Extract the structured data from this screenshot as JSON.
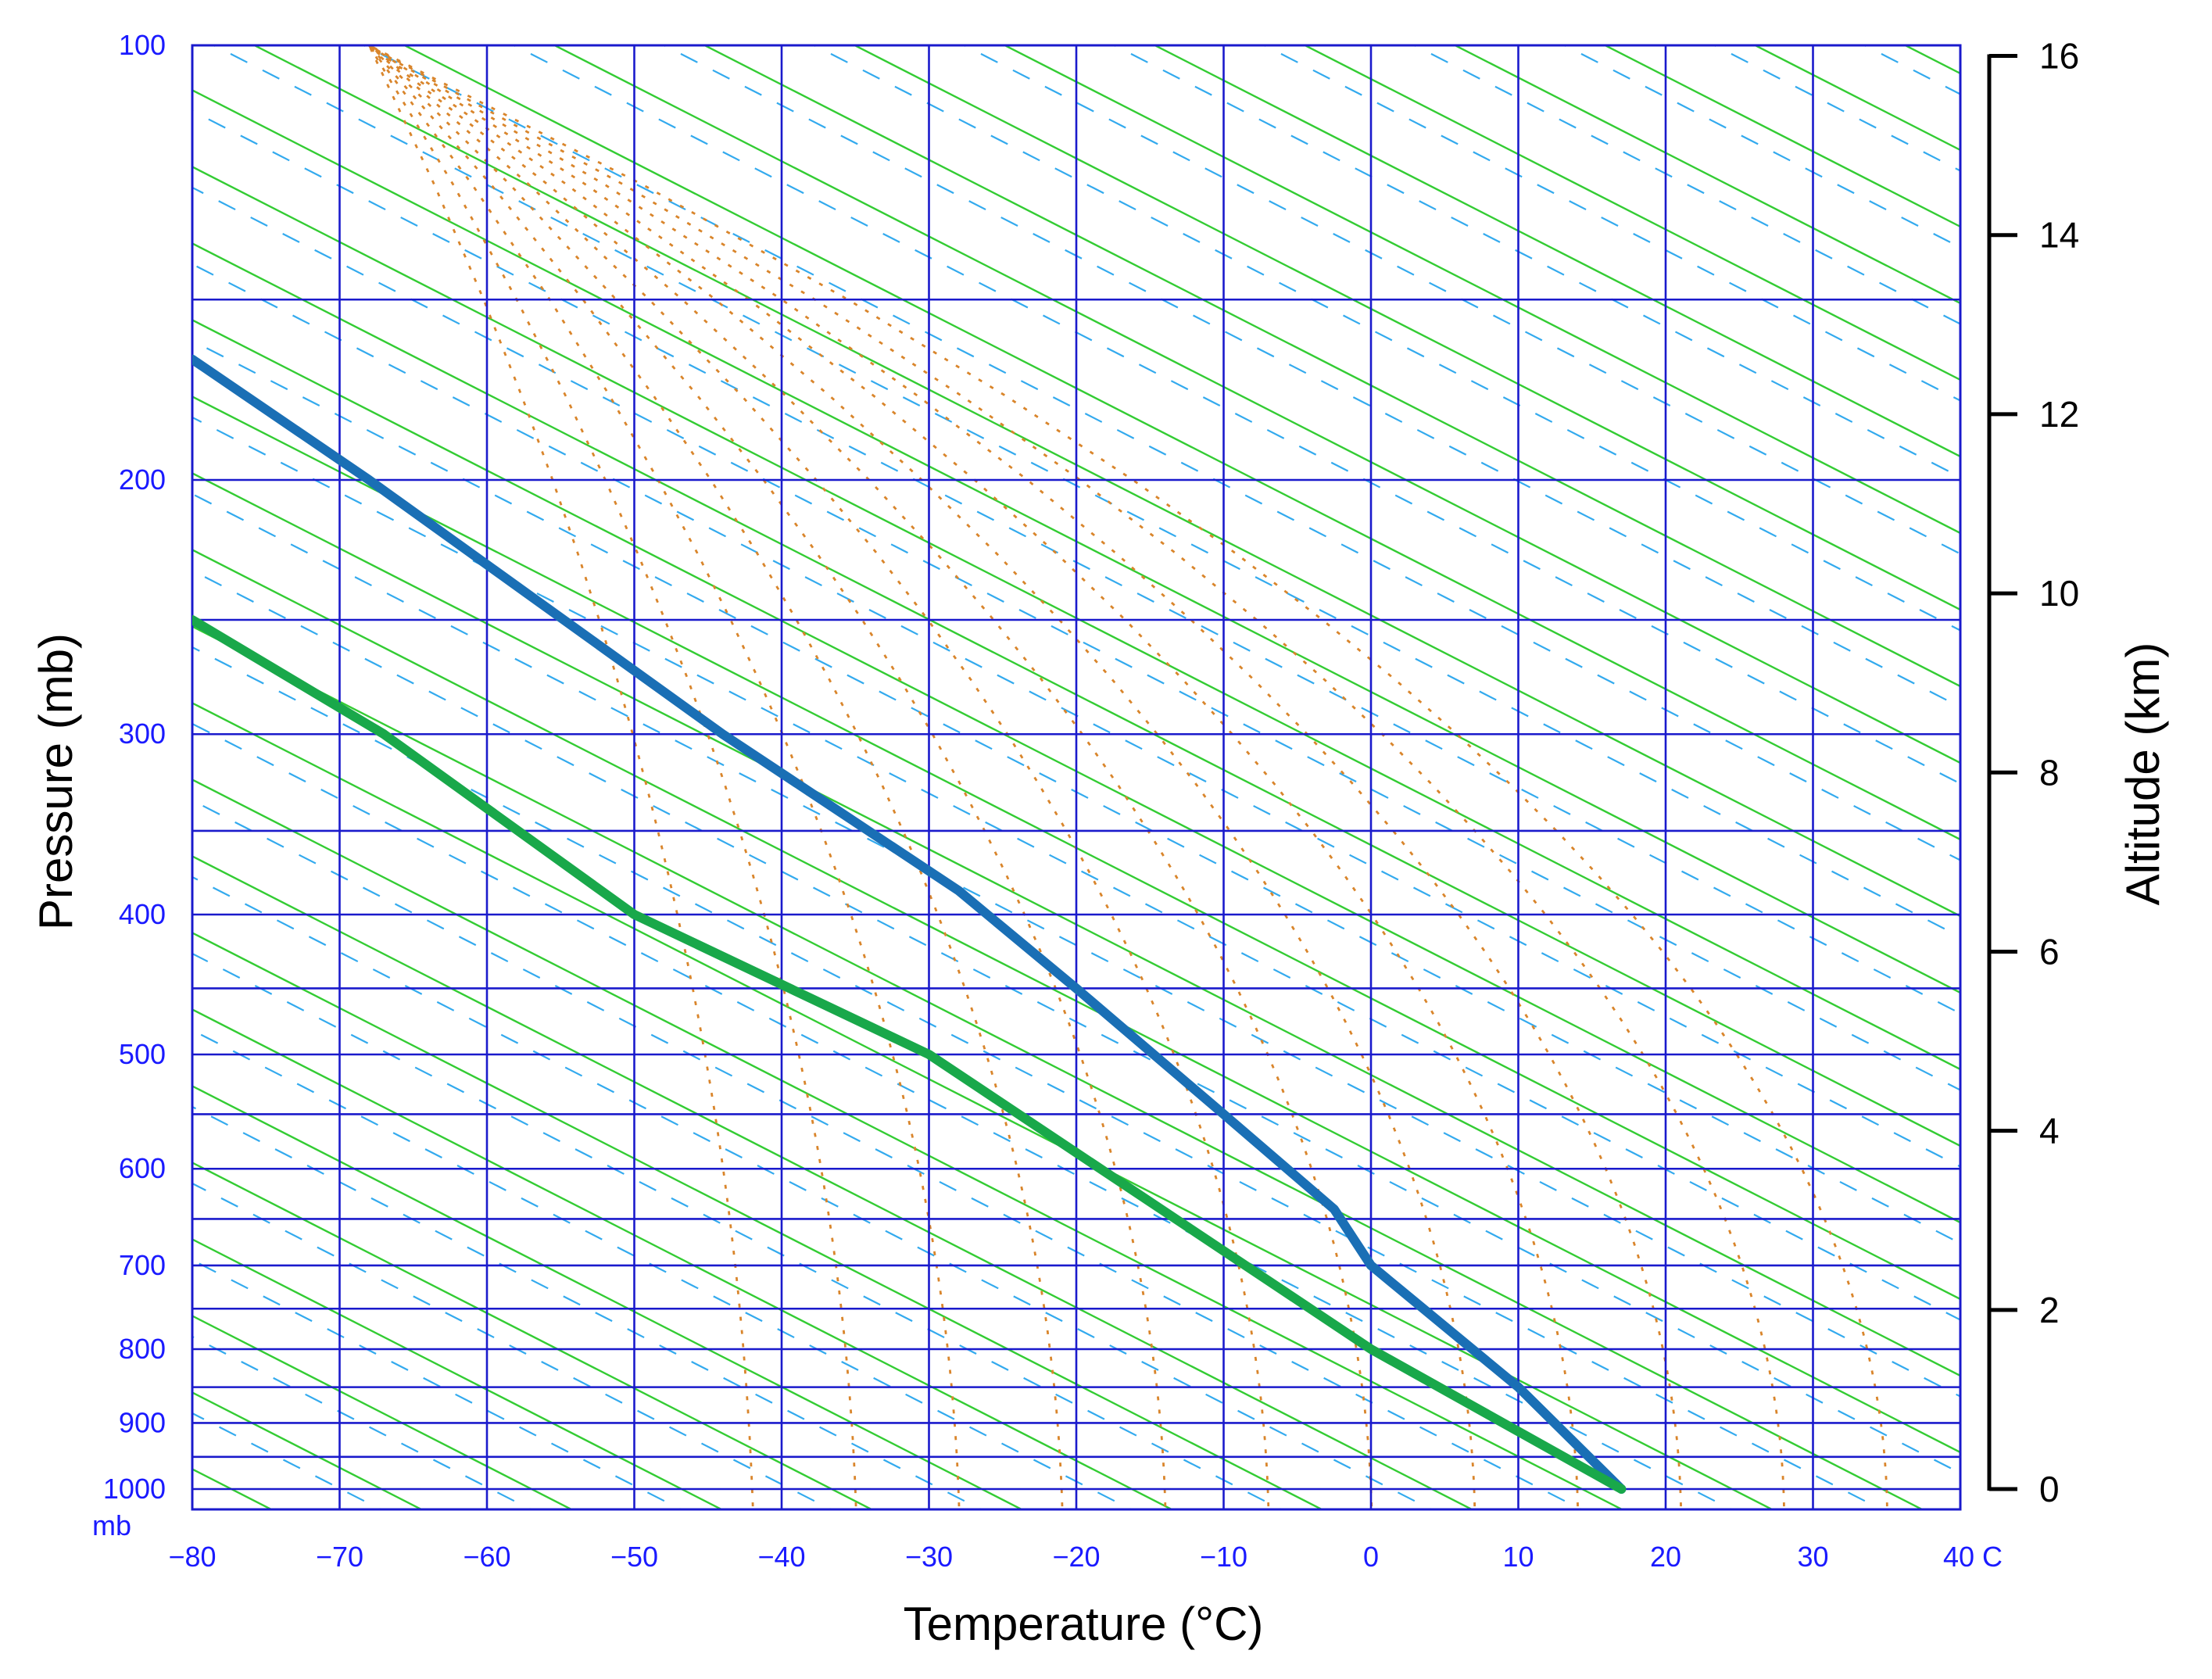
{
  "chart_data": {
    "type": "line",
    "title": "",
    "xlabel": "Temperature (°C)",
    "ylabel": "Pressure (mb)",
    "y2label": "Altitude (km)",
    "x_ticks": [
      "−80",
      "−70",
      "−60",
      "−50",
      "−40",
      "−30",
      "−20",
      "−10",
      "0",
      "10",
      "20",
      "30",
      "40 C"
    ],
    "x_tick_values": [
      -80,
      -70,
      -60,
      -50,
      -40,
      -30,
      -20,
      -10,
      0,
      10,
      20,
      30,
      40
    ],
    "y_ticks": [
      "100",
      "200",
      "300",
      "400",
      "500",
      "600",
      "700",
      "800",
      "900",
      "1000"
    ],
    "y_tick_values": [
      100,
      200,
      300,
      400,
      500,
      600,
      700,
      800,
      900,
      1000
    ],
    "y_unit_label": "mb",
    "y_grid_levels": [
      100,
      150,
      200,
      250,
      300,
      350,
      400,
      450,
      500,
      550,
      600,
      650,
      700,
      750,
      800,
      850,
      900,
      950,
      1000,
      1050
    ],
    "y2_ticks": [
      "0",
      "2",
      "4",
      "6",
      "8",
      "10",
      "12",
      "14",
      "16"
    ],
    "y2_tick_values": [
      0,
      2,
      4,
      6,
      8,
      10,
      12,
      14,
      16
    ],
    "xlim": [
      -80,
      40
    ],
    "ylim": [
      1050,
      100
    ],
    "y_scale": "log",
    "grid": true,
    "colors": {
      "grid": "#1a1acc",
      "dry_adiabat": "#33cc33",
      "moist_adiabat": "#d9852b",
      "mixing_ratio": "#33aaee",
      "blue_profile": "#1a6fb5",
      "green_profile": "#19a84a",
      "tick_label": "#1a1aff"
    },
    "series": [
      {
        "color": "blue_profile",
        "points": [
          {
            "p": 1000,
            "t": 17
          },
          {
            "p": 850,
            "t": 10
          },
          {
            "p": 700,
            "t": 0
          },
          {
            "p": 640,
            "t": -2.5
          },
          {
            "p": 550,
            "t": -10
          },
          {
            "p": 450,
            "t": -20
          },
          {
            "p": 385,
            "t": -28
          },
          {
            "p": 300,
            "t": -44
          },
          {
            "p": 200,
            "t": -68
          },
          {
            "p": 165,
            "t": -80
          }
        ]
      },
      {
        "color": "green_profile",
        "points": [
          {
            "p": 1000,
            "t": 17
          },
          {
            "p": 800,
            "t": 0
          },
          {
            "p": 500,
            "t": -30
          },
          {
            "p": 400,
            "t": -50
          },
          {
            "p": 300,
            "t": -67
          },
          {
            "p": 250,
            "t": -80
          }
        ]
      }
    ]
  }
}
